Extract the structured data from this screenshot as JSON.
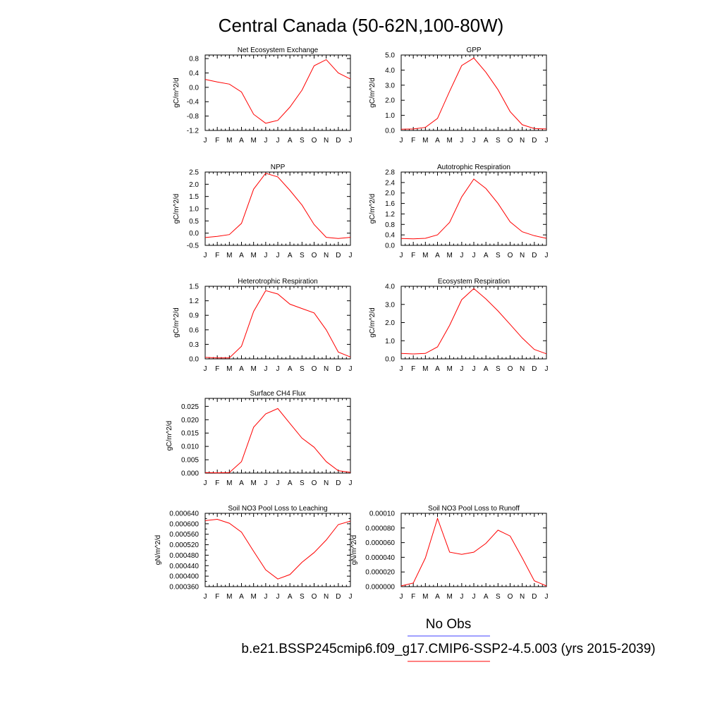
{
  "figure": {
    "title": "Central Canada (50-62N,100-80W)",
    "legend": [
      {
        "label": "No Obs",
        "color": "#4040ff"
      },
      {
        "label": "b.e21.BSSP245cmip6.f09_g17.CMIP6-SSP2-4.5.003 (yrs 2015-2039)",
        "color": "#ff0000"
      }
    ]
  },
  "chart_data": [
    {
      "type": "line",
      "title": "Net Ecosystem Exchange",
      "ylabel": "gC/m^2/d",
      "xlabel": "",
      "x": [
        "J",
        "F",
        "M",
        "A",
        "M",
        "J",
        "J",
        "A",
        "S",
        "O",
        "N",
        "D",
        "J"
      ],
      "ylim": [
        -1.2,
        0.9
      ],
      "yticks": [
        "-1.2",
        "-0.8",
        "-0.4",
        "0.0",
        "0.4",
        "0.8"
      ],
      "ytick_values": [
        -1.2,
        -0.8,
        -0.4,
        0.0,
        0.4,
        0.8
      ],
      "series": [
        {
          "values": [
            0.22,
            0.15,
            0.09,
            -0.13,
            -0.75,
            -1.0,
            -0.92,
            -0.55,
            -0.08,
            0.6,
            0.77,
            0.4,
            0.23
          ]
        }
      ],
      "grid": false
    },
    {
      "type": "line",
      "title": "GPP",
      "ylabel": "gC/m^2/d",
      "xlabel": "",
      "x": [
        "J",
        "F",
        "M",
        "A",
        "M",
        "J",
        "J",
        "A",
        "S",
        "O",
        "N",
        "D",
        "J"
      ],
      "ylim": [
        0.0,
        5.0
      ],
      "yticks": [
        "0.0",
        "1.0",
        "2.0",
        "3.0",
        "4.0",
        "5.0"
      ],
      "ytick_values": [
        0,
        1,
        2,
        3,
        4,
        5
      ],
      "series": [
        {
          "values": [
            0.08,
            0.1,
            0.2,
            0.8,
            2.6,
            4.3,
            4.8,
            3.85,
            2.7,
            1.25,
            0.38,
            0.12,
            0.1
          ]
        }
      ],
      "grid": false
    },
    {
      "type": "line",
      "title": "NPP",
      "ylabel": "gC/m^2/d",
      "xlabel": "",
      "x": [
        "J",
        "F",
        "M",
        "A",
        "M",
        "J",
        "J",
        "A",
        "S",
        "O",
        "N",
        "D",
        "J"
      ],
      "ylim": [
        -0.5,
        2.5
      ],
      "yticks": [
        "-0.5",
        "0.0",
        "0.5",
        "1.0",
        "1.5",
        "2.0",
        "2.5"
      ],
      "ytick_values": [
        -0.5,
        0,
        0.5,
        1.0,
        1.5,
        2.0,
        2.5
      ],
      "series": [
        {
          "values": [
            -0.18,
            -0.13,
            -0.06,
            0.4,
            1.8,
            2.45,
            2.3,
            1.75,
            1.15,
            0.35,
            -0.17,
            -0.22,
            -0.17
          ]
        }
      ],
      "grid": false
    },
    {
      "type": "line",
      "title": "Autotrophic Respiration",
      "ylabel": "gC/m^2/d",
      "xlabel": "",
      "x": [
        "J",
        "F",
        "M",
        "A",
        "M",
        "J",
        "J",
        "A",
        "S",
        "O",
        "N",
        "D",
        "J"
      ],
      "ylim": [
        0.0,
        2.8
      ],
      "yticks": [
        "0.0",
        "0.4",
        "0.8",
        "1.2",
        "1.6",
        "2.0",
        "2.4",
        "2.8"
      ],
      "ytick_values": [
        0,
        0.4,
        0.8,
        1.2,
        1.6,
        2.0,
        2.4,
        2.8
      ],
      "series": [
        {
          "values": [
            0.26,
            0.25,
            0.27,
            0.4,
            0.88,
            1.85,
            2.53,
            2.17,
            1.6,
            0.9,
            0.52,
            0.37,
            0.27
          ]
        }
      ],
      "grid": false
    },
    {
      "type": "line",
      "title": "Heterotrophic Respiration",
      "ylabel": "gC/m^2/d",
      "xlabel": "",
      "x": [
        "J",
        "F",
        "M",
        "A",
        "M",
        "J",
        "J",
        "A",
        "S",
        "O",
        "N",
        "D",
        "J"
      ],
      "ylim": [
        0.0,
        1.5
      ],
      "yticks": [
        "0.0",
        "0.3",
        "0.6",
        "0.9",
        "1.2",
        "1.5"
      ],
      "ytick_values": [
        0,
        0.3,
        0.6,
        0.9,
        1.2,
        1.5
      ],
      "series": [
        {
          "values": [
            0.03,
            0.02,
            0.02,
            0.26,
            0.98,
            1.41,
            1.34,
            1.13,
            1.04,
            0.95,
            0.6,
            0.14,
            0.04
          ]
        }
      ],
      "grid": false
    },
    {
      "type": "line",
      "title": "Ecosystem Respiration",
      "ylabel": "gC/m^2/d",
      "xlabel": "",
      "x": [
        "J",
        "F",
        "M",
        "A",
        "M",
        "J",
        "J",
        "A",
        "S",
        "O",
        "N",
        "D",
        "J"
      ],
      "ylim": [
        0.0,
        4.0
      ],
      "yticks": [
        "0.0",
        "1.0",
        "2.0",
        "3.0",
        "4.0"
      ],
      "ytick_values": [
        0,
        1,
        2,
        3,
        4
      ],
      "series": [
        {
          "values": [
            0.3,
            0.27,
            0.3,
            0.66,
            1.85,
            3.26,
            3.87,
            3.3,
            2.64,
            1.9,
            1.15,
            0.52,
            0.28
          ]
        }
      ],
      "grid": false
    },
    {
      "type": "line",
      "title": "Surface CH4 Flux",
      "ylabel": "gC/m^2/d",
      "xlabel": "",
      "x": [
        "J",
        "F",
        "M",
        "A",
        "M",
        "J",
        "J",
        "A",
        "S",
        "O",
        "N",
        "D",
        "J"
      ],
      "ylim": [
        0.0,
        0.028
      ],
      "yticks": [
        "0.000",
        "0.005",
        "0.010",
        "0.015",
        "0.020",
        "0.025"
      ],
      "ytick_values": [
        0,
        0.005,
        0.01,
        0.015,
        0.02,
        0.025
      ],
      "series": [
        {
          "values": [
            0.0002,
            0.0001,
            0.0002,
            0.0043,
            0.0172,
            0.0222,
            0.0242,
            0.0186,
            0.0131,
            0.0097,
            0.0043,
            0.0009,
            0.0003
          ]
        }
      ],
      "grid": false
    },
    {
      "type": "line",
      "title": "Soil NO3 Pool Loss to Leaching",
      "ylabel": "gN/m^2/d",
      "xlabel": "",
      "x": [
        "J",
        "F",
        "M",
        "A",
        "M",
        "J",
        "J",
        "A",
        "S",
        "O",
        "N",
        "D",
        "J"
      ],
      "ylim": [
        0.00036,
        0.00064
      ],
      "yticks": [
        "0.000360",
        "0.000400",
        "0.000440",
        "0.000480",
        "0.000520",
        "0.000560",
        "0.000600",
        "0.000640"
      ],
      "ytick_values": [
        0.00036,
        0.00038,
        0.0004,
        0.00042,
        0.00044,
        0.00046,
        0.00048,
        0.0005,
        0.00052,
        0.00054,
        0.00056,
        0.00058,
        0.0006,
        0.00062,
        0.00064
      ],
      "yticks_all": true,
      "series": [
        {
          "values": [
            0.000612,
            0.000617,
            0.000602,
            0.000568,
            0.000495,
            0.000424,
            0.000389,
            0.000406,
            0.000453,
            0.00049,
            0.000538,
            0.000597,
            0.00061
          ]
        }
      ],
      "grid": false
    },
    {
      "type": "line",
      "title": "Soil NO3 Pool Loss to Runoff",
      "ylabel": "gN/m^2/d",
      "xlabel": "",
      "x": [
        "J",
        "F",
        "M",
        "A",
        "M",
        "J",
        "J",
        "A",
        "S",
        "O",
        "N",
        "D",
        "J"
      ],
      "ylim": [
        0.0,
        0.0001
      ],
      "yticks": [
        "0.000000",
        "0.000020",
        "0.000040",
        "0.000060",
        "0.000080",
        "0.00010"
      ],
      "ytick_values": [
        0,
        2e-05,
        4e-05,
        6e-05,
        8e-05,
        0.0001
      ],
      "series": [
        {
          "values": [
            1e-06,
            5e-06,
            3.9e-05,
            9.3e-05,
            4.7e-05,
            4.4e-05,
            4.7e-05,
            5.9e-05,
            7.7e-05,
            6.9e-05,
            3.9e-05,
            8e-06,
            1e-06
          ]
        }
      ],
      "grid": false
    }
  ]
}
